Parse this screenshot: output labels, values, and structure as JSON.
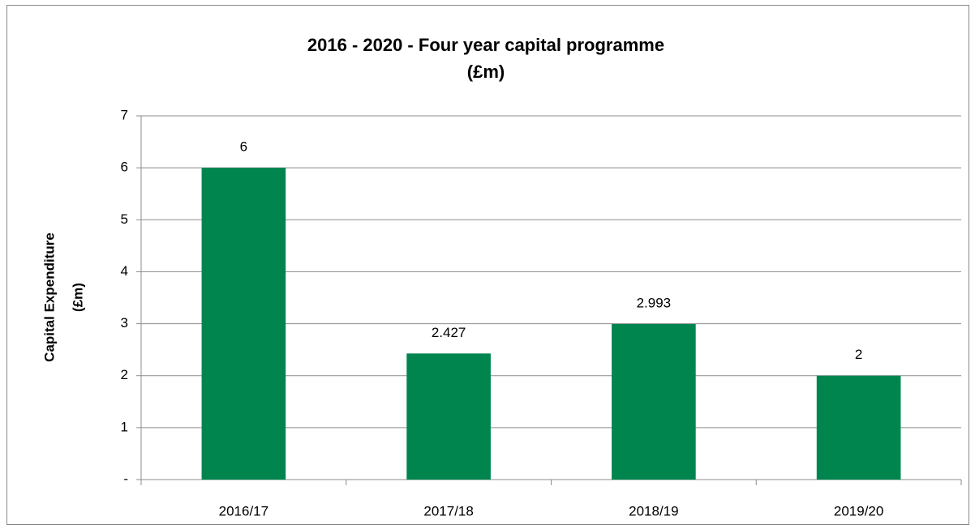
{
  "chart_data": {
    "type": "bar",
    "title": [
      "2016 - 2020 - Four year capital programme",
      "(£m)"
    ],
    "y_axis_label": [
      "Capital Expenditure",
      "(£m)"
    ],
    "categories": [
      "2016/17",
      "2017/18",
      "2018/19",
      "2019/20"
    ],
    "values": [
      6,
      2.427,
      2.993,
      2
    ],
    "color": "#00854f",
    "ylim": [
      0,
      7
    ],
    "yticks": [
      {
        "value": 0,
        "label": "-"
      },
      1,
      2,
      3,
      4,
      5,
      6,
      7
    ],
    "grid": true
  }
}
